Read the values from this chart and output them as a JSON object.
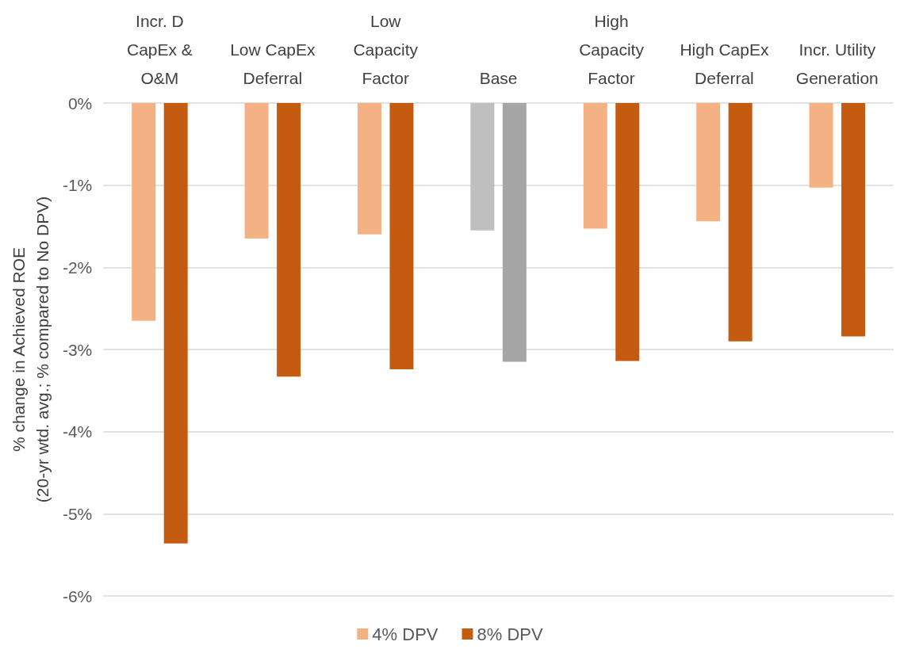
{
  "chart_data": {
    "type": "bar",
    "ylabel": "% change in Achieved ROE\n(20-yr wtd. avg.; % compared to No DPV)",
    "categories": [
      "Incr. D\nCapEx &\nO&M",
      "Low CapEx\nDeferral",
      "Low\nCapacity\nFactor",
      "Base",
      "High\nCapacity\nFactor",
      "High CapEx\nDeferral",
      "Incr. Utility\nGeneration"
    ],
    "series": [
      {
        "name": "4% DPV",
        "color": "#f4b183",
        "colors": [
          "#f4b183",
          "#f4b183",
          "#f4b183",
          "#bfbfbf",
          "#f4b183",
          "#f4b183",
          "#f4b183"
        ],
        "values": [
          -2.65,
          -1.65,
          -1.6,
          -1.55,
          -1.53,
          -1.44,
          -1.03
        ]
      },
      {
        "name": "8% DPV",
        "color": "#c55a11",
        "colors": [
          "#c55a11",
          "#c55a11",
          "#c55a11",
          "#a6a6a6",
          "#c55a11",
          "#c55a11",
          "#c55a11"
        ],
        "values": [
          -5.36,
          -3.33,
          -3.24,
          -3.15,
          -3.14,
          -2.9,
          -2.84
        ]
      }
    ],
    "ylim": [
      -6,
      0
    ],
    "yticks": [
      {
        "value": 0,
        "label": "0%"
      },
      {
        "value": -1,
        "label": "-1%"
      },
      {
        "value": -2,
        "label": "-2%"
      },
      {
        "value": -3,
        "label": "-3%"
      },
      {
        "value": -4,
        "label": "-4%"
      },
      {
        "value": -5,
        "label": "-5%"
      },
      {
        "value": -6,
        "label": "-6%"
      }
    ],
    "grid": "y",
    "legend": "bottom"
  }
}
